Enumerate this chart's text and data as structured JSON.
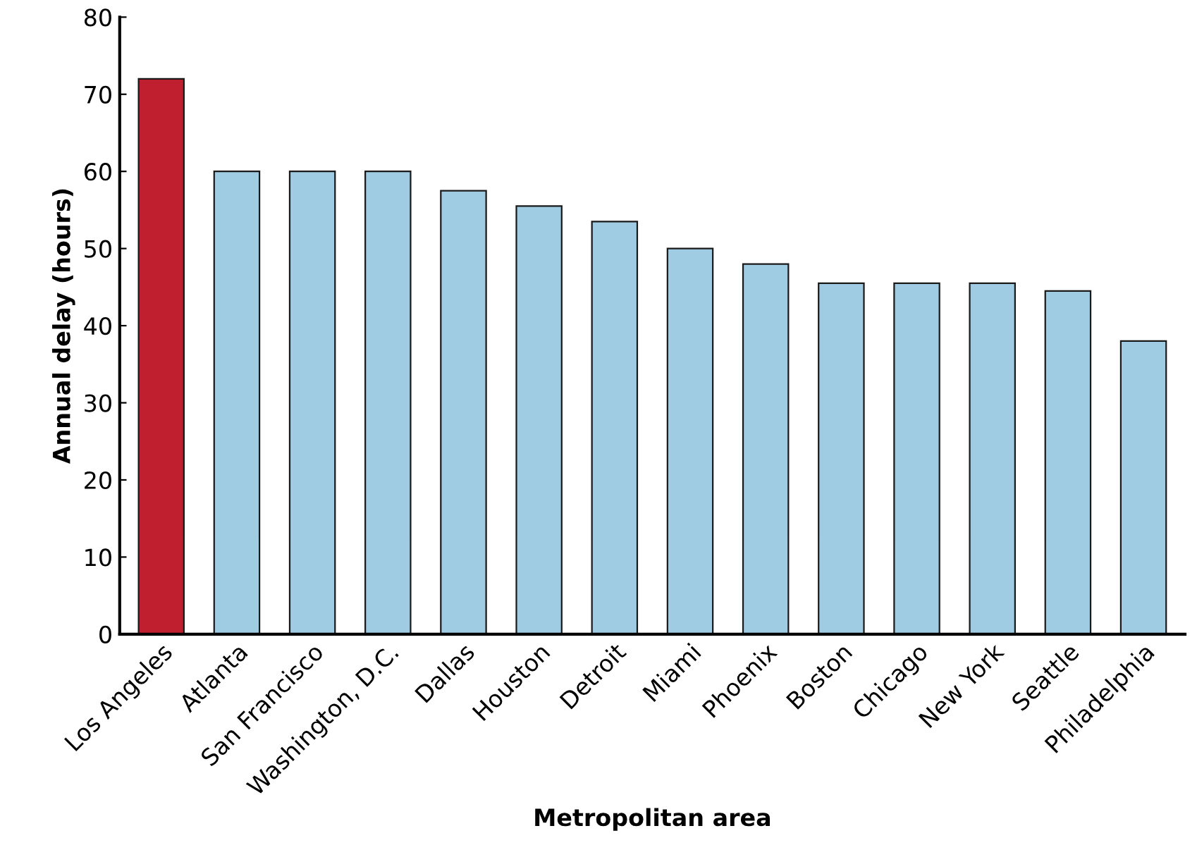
{
  "chart_data": {
    "type": "bar",
    "xlabel": "Metropolitan area",
    "ylabel": "Annual delay (hours)",
    "categories": [
      "Los Angeles",
      "Atlanta",
      "San Francisco",
      "Washington, D.C.",
      "Dallas",
      "Houston",
      "Detroit",
      "Miami",
      "Phoenix",
      "Boston",
      "Chicago",
      "New York",
      "Seattle",
      "Philadelphia"
    ],
    "values": [
      72,
      60,
      60,
      60,
      57.5,
      55.5,
      53.5,
      50,
      48,
      45.5,
      45.5,
      45.5,
      44.5,
      38
    ],
    "colors": [
      "#c01f2f",
      "#9fcbe3",
      "#9fcbe3",
      "#9fcbe3",
      "#9fcbe3",
      "#9fcbe3",
      "#9fcbe3",
      "#9fcbe3",
      "#9fcbe3",
      "#9fcbe3",
      "#9fcbe3",
      "#9fcbe3",
      "#9fcbe3",
      "#9fcbe3"
    ],
    "ylim": [
      0,
      80
    ],
    "yticks": [
      0,
      10,
      20,
      30,
      40,
      50,
      60,
      70,
      80
    ],
    "grid": false
  }
}
